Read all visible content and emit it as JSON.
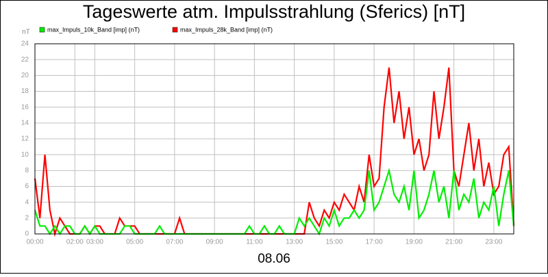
{
  "chart_data": {
    "type": "line",
    "title": "Tageswerte atm. Impulsstrahlung (Sferics) [nT]",
    "y_unit": "nT",
    "x_label": "08.06",
    "grid": true,
    "xlim": [
      0,
      24
    ],
    "xticks": [
      {
        "value": 0,
        "label": "00:00"
      },
      {
        "value": 2,
        "label": "02:00"
      },
      {
        "value": 3,
        "label": "03:00"
      },
      {
        "value": 5,
        "label": "05:00"
      },
      {
        "value": 7,
        "label": "07:00"
      },
      {
        "value": 9,
        "label": "09:00"
      },
      {
        "value": 11,
        "label": "11:00"
      },
      {
        "value": 13,
        "label": "13:00"
      },
      {
        "value": 15,
        "label": "15:00"
      },
      {
        "value": 17,
        "label": "17:00"
      },
      {
        "value": 19,
        "label": "19:00"
      },
      {
        "value": 21,
        "label": "21:00"
      },
      {
        "value": 23,
        "label": "23:00"
      }
    ],
    "ylim": [
      0,
      24
    ],
    "yticks": [
      0,
      2,
      4,
      6,
      8,
      10,
      12,
      14,
      16,
      18,
      20,
      22,
      24
    ],
    "x": [
      0,
      0.25,
      0.5,
      0.75,
      1,
      1.25,
      1.5,
      1.75,
      2,
      2.25,
      2.5,
      2.75,
      3,
      3.25,
      3.5,
      3.75,
      4,
      4.25,
      4.5,
      4.75,
      5,
      5.25,
      5.5,
      5.75,
      6,
      6.25,
      6.5,
      6.75,
      7,
      7.25,
      7.5,
      7.75,
      8,
      8.25,
      8.5,
      8.75,
      9,
      9.25,
      9.5,
      9.75,
      10,
      10.25,
      10.5,
      10.75,
      11,
      11.25,
      11.5,
      11.75,
      12,
      12.25,
      12.5,
      12.75,
      13,
      13.25,
      13.5,
      13.75,
      14,
      14.25,
      14.5,
      14.75,
      15,
      15.25,
      15.5,
      15.75,
      16,
      16.25,
      16.5,
      16.75,
      17,
      17.25,
      17.5,
      17.75,
      18,
      18.25,
      18.5,
      18.75,
      19,
      19.25,
      19.5,
      19.75,
      20,
      20.25,
      20.5,
      20.75,
      21,
      21.25,
      21.5,
      21.75,
      22,
      22.25,
      22.5,
      22.75,
      23,
      23.25,
      23.5,
      23.75,
      24
    ],
    "series": [
      {
        "name": "max_Impuls_28k_Band [imp] (nT)",
        "color": "#ff0000",
        "values": [
          7,
          2,
          10,
          3,
          0,
          2,
          1,
          0,
          0,
          0,
          1,
          0,
          1,
          1,
          0,
          0,
          0,
          2,
          1,
          1,
          1,
          0,
          0,
          0,
          0,
          0,
          0,
          0,
          0,
          2,
          0,
          0,
          0,
          0,
          0,
          0,
          0,
          0,
          0,
          0,
          0,
          0,
          0,
          0,
          0,
          0,
          0,
          0,
          0,
          0,
          0,
          0,
          0,
          0,
          0,
          4,
          2,
          1,
          3,
          2,
          4,
          3,
          5,
          4,
          3,
          6,
          4,
          10,
          6,
          7,
          16,
          21,
          14,
          18,
          12,
          16,
          10,
          12,
          8,
          10,
          18,
          12,
          16,
          21,
          8,
          6,
          10,
          14,
          8,
          12,
          6,
          9,
          5,
          6,
          10,
          11,
          1
        ]
      },
      {
        "name": "max_Impuls_10k_Band [imp] (nT)",
        "color": "#00ee00",
        "values": [
          3,
          1,
          1,
          0,
          1,
          0,
          1,
          1,
          0,
          0,
          1,
          0,
          1,
          0,
          0,
          0,
          0,
          0,
          1,
          1,
          0,
          0,
          0,
          0,
          0,
          1,
          0,
          0,
          0,
          0,
          0,
          0,
          0,
          0,
          0,
          0,
          0,
          0,
          0,
          0,
          0,
          0,
          0,
          1,
          0,
          0,
          1,
          0,
          0,
          1,
          0,
          0,
          0,
          2,
          1,
          2,
          1,
          0,
          2,
          1,
          3,
          1,
          2,
          2,
          3,
          2,
          3,
          8,
          3,
          4,
          6,
          8,
          5,
          4,
          6,
          3,
          8,
          2,
          3,
          5,
          8,
          4,
          6,
          2,
          8,
          3,
          5,
          4,
          7,
          2,
          4,
          3,
          6,
          1,
          5,
          8,
          1
        ]
      }
    ]
  }
}
